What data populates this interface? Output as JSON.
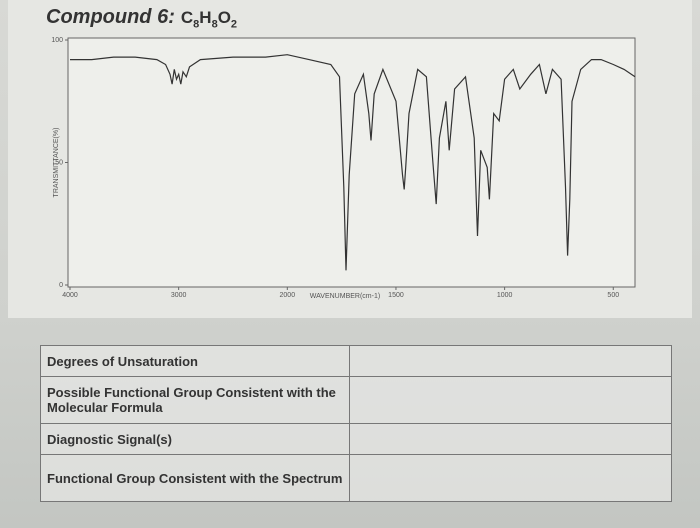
{
  "header": {
    "title": "Compound 6:",
    "formula": [
      "C",
      "8",
      "H",
      "8",
      "O",
      "2"
    ]
  },
  "chart_data": {
    "type": "line",
    "xlabel": "WAVENUMBER(cm-1)",
    "ylabel": "TRANSMITTANCE(%)",
    "xlim": [
      4000,
      400
    ],
    "xticks": [
      4000,
      3000,
      2000,
      1500,
      1000,
      500
    ],
    "ylim": [
      0,
      100
    ],
    "yticks": [
      0,
      50,
      100
    ],
    "series": [
      {
        "name": "spectrum",
        "color": "#333333",
        "x": [
          4000,
          3800,
          3600,
          3400,
          3200,
          3120,
          3080,
          3060,
          3040,
          3020,
          3000,
          2980,
          2960,
          2930,
          2900,
          2800,
          2500,
          2200,
          2000,
          1900,
          1800,
          1760,
          1740,
          1730,
          1715,
          1690,
          1650,
          1625,
          1615,
          1600,
          1560,
          1500,
          1470,
          1462,
          1455,
          1440,
          1400,
          1360,
          1330,
          1315,
          1300,
          1270,
          1255,
          1230,
          1180,
          1140,
          1125,
          1110,
          1080,
          1070,
          1050,
          1025,
          1000,
          960,
          930,
          880,
          840,
          810,
          780,
          740,
          720,
          710,
          700,
          690,
          650,
          600,
          556,
          500,
          450,
          400
        ],
        "values": [
          92,
          92,
          93,
          93,
          92,
          90,
          86,
          82,
          88,
          84,
          86,
          82,
          87,
          85,
          89,
          92,
          93,
          93,
          94,
          92,
          90,
          85,
          40,
          6,
          45,
          78,
          86,
          70,
          59,
          78,
          88,
          75,
          45,
          39,
          48,
          70,
          88,
          85,
          50,
          33,
          60,
          75,
          55,
          80,
          85,
          60,
          20,
          55,
          48,
          35,
          70,
          67,
          84,
          88,
          80,
          86,
          90,
          78,
          88,
          84,
          40,
          12,
          35,
          75,
          88,
          92,
          92,
          90,
          88,
          85
        ]
      }
    ]
  },
  "table": {
    "rows": [
      [
        "Degrees of Unsaturation",
        ""
      ],
      [
        "Possible Functional Group Consistent with the Molecular Formula",
        ""
      ],
      [
        "Diagnostic Signal(s)",
        ""
      ],
      [
        "Functional Group Consistent with the Spectrum",
        ""
      ]
    ]
  }
}
